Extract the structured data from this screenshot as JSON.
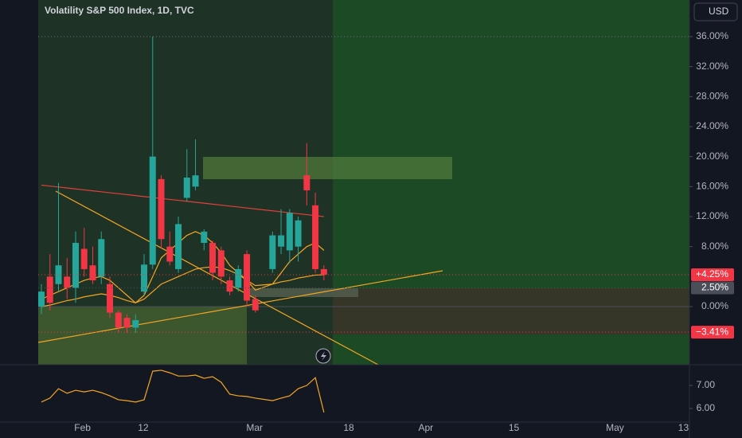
{
  "chart_data": [
    {
      "type": "candlestick",
      "title": "Volatility S&P 500 Index, 1D, TVC",
      "currency": "USD",
      "up_color": "#26a69a",
      "down_color": "#f23645",
      "x": [
        0,
        1,
        2,
        3,
        4,
        5,
        6,
        7,
        8,
        9,
        10,
        11,
        12,
        13,
        14,
        15,
        16,
        17,
        18,
        19,
        20,
        21,
        22,
        23,
        24,
        25,
        27,
        28,
        29,
        30,
        31,
        32,
        33
      ],
      "open": [
        0,
        4,
        3,
        4,
        2.5,
        7.7,
        5.5,
        4,
        3,
        -0.8,
        -1.5,
        -2.8,
        2,
        5.6,
        17,
        8,
        5,
        14.5,
        16,
        8.5,
        8.5,
        7.5,
        3.5,
        2.5,
        7,
        1,
        5,
        8,
        7.5,
        8,
        17.5,
        13.5,
        5
      ],
      "high": [
        3,
        7,
        16.5,
        6.5,
        10,
        10.5,
        8,
        10,
        4,
        -0.5,
        -1,
        -1,
        7,
        36,
        17.5,
        10,
        12,
        21,
        22.3,
        10.3,
        8.8,
        8,
        4,
        5.5,
        7.5,
        1.5,
        10,
        13,
        13,
        12,
        21.8,
        15.2,
        5.5
      ],
      "low": [
        -1,
        -0.5,
        2,
        1,
        0.5,
        4,
        3,
        3,
        -1.5,
        -3.5,
        -3.5,
        -3.5,
        1.5,
        5,
        7.8,
        5.5,
        4.5,
        14,
        15.5,
        7.5,
        3.5,
        3,
        1.5,
        2,
        0,
        -0.8,
        4.5,
        7,
        5.8,
        6,
        13.5,
        4.5,
        3.5
      ],
      "close": [
        2,
        0.5,
        5.5,
        2.5,
        8.5,
        5,
        3.5,
        9,
        -0.8,
        -2.8,
        -2.8,
        -1.8,
        5.6,
        20,
        9,
        6,
        11,
        17.2,
        17.5,
        10,
        4.5,
        4,
        2,
        5,
        0.8,
        -0.5,
        9.5,
        9.5,
        12.5,
        11.5,
        15.5,
        5,
        4.25
      ],
      "overlays": [
        {
          "color": "#e0403a",
          "values": [
            16.2,
            16.07,
            15.95,
            15.82,
            15.69,
            15.56,
            15.44,
            15.31,
            15.18,
            15.06,
            14.93,
            14.8,
            14.67,
            14.55,
            14.42,
            14.29,
            14.17,
            14.04,
            13.91,
            13.79,
            13.66,
            13.53,
            13.4,
            13.28,
            13.15,
            13.02,
            12.77,
            12.64,
            12.51,
            12.39,
            12.26,
            12.13,
            12.0
          ]
        },
        {
          "color": "#f5a623",
          "values": [
            1,
            1.5,
            2,
            2.5,
            3,
            3.5,
            3.8,
            4,
            3.5,
            2.5,
            1.5,
            0.5,
            1.5,
            4,
            6.5,
            7.5,
            8.5,
            9.5,
            10,
            9.5,
            8.5,
            7.2,
            5.5,
            4.5,
            3.5,
            2.2,
            3,
            4.5,
            6,
            7,
            8,
            8.5,
            7.5
          ]
        },
        {
          "color": "#f5a623",
          "values": [
            0,
            0.2,
            0.5,
            0.8,
            1,
            1.3,
            1.5,
            1.7,
            1.5,
            1.2,
            0.8,
            0.5,
            1,
            2,
            3,
            3.5,
            4,
            4.5,
            5,
            5.2,
            5.3,
            5.2,
            4.8,
            4.3,
            3.5,
            2.8,
            3,
            3.3,
            3.5,
            3.8,
            4,
            4.2,
            4.25
          ]
        }
      ],
      "xlim": [
        -0.37,
        75.7
      ],
      "xticks": [
        {
          "value": 4.8,
          "label": "Feb"
        },
        {
          "value": 11.9,
          "label": "12"
        },
        {
          "value": 24.9,
          "label": "Mar"
        },
        {
          "value": 35.9,
          "label": "18"
        },
        {
          "value": 44.9,
          "label": "Apr"
        },
        {
          "value": 55.2,
          "label": "15"
        },
        {
          "value": 67,
          "label": "May"
        },
        {
          "value": 75,
          "label": "13"
        }
      ],
      "ylim": [
        -7.75,
        40.88
      ],
      "yticks": [
        {
          "value": 0,
          "label": "0.00%"
        },
        {
          "value": 8,
          "label": "8.00%"
        },
        {
          "value": 12,
          "label": "12.00%"
        },
        {
          "value": 16,
          "label": "16.00%"
        },
        {
          "value": 20,
          "label": "20.00%"
        },
        {
          "value": 24,
          "label": "24.00%"
        },
        {
          "value": 28,
          "label": "28.00%"
        },
        {
          "value": 32,
          "label": "32.00%"
        },
        {
          "value": 36,
          "label": "36.00%"
        }
      ],
      "price_labels": [
        {
          "value": 4.25,
          "label": "+4.25%",
          "color": "#f23645"
        },
        {
          "value": 2.5,
          "label": "2.50%",
          "color": "#4a4e58"
        },
        {
          "value": -3.41,
          "label": "−3.41%",
          "color": "#f23645"
        }
      ]
    },
    {
      "type": "line",
      "color": "#f5a623",
      "x": [
        0,
        1,
        2,
        3,
        4,
        5,
        6,
        7,
        8,
        9,
        10,
        11,
        12,
        13,
        14,
        15,
        16,
        17,
        18,
        19,
        20,
        21,
        22,
        23,
        24,
        25,
        27,
        28,
        29,
        30,
        31,
        32,
        33
      ],
      "values": [
        6.28,
        6.45,
        6.86,
        6.66,
        6.79,
        6.72,
        6.79,
        6.69,
        6.55,
        6.38,
        6.34,
        6.28,
        6.38,
        7.62,
        7.66,
        7.55,
        7.41,
        7.41,
        7.45,
        7.31,
        7.38,
        7.14,
        6.62,
        6.55,
        6.52,
        6.45,
        6.34,
        6.45,
        6.55,
        6.86,
        7.0,
        7.34,
        5.83
      ],
      "ylim": [
        5.41,
        7.9
      ],
      "yticks": [
        {
          "value": 6,
          "label": "6.00"
        },
        {
          "value": 7,
          "label": "7.00"
        }
      ]
    }
  ]
}
